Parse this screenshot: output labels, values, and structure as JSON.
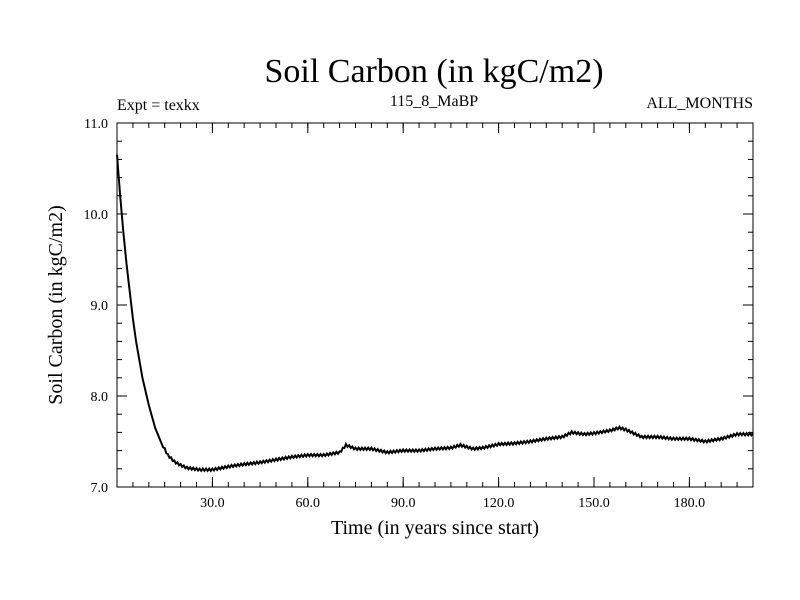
{
  "chart_data": {
    "type": "line",
    "title": "Soil Carbon (in kgC/m2)",
    "subtitle_left": "Expt = texkx",
    "subtitle_center": "115_8_MaBP",
    "subtitle_right": "ALL_MONTHS",
    "xlabel": "Time (in years since start)",
    "ylabel": "Soil Carbon (in kgC/m2)",
    "xlim": [
      0,
      200
    ],
    "ylim": [
      7.0,
      11.0
    ],
    "x_ticks": [
      30,
      60,
      90,
      120,
      150,
      180
    ],
    "x_tick_labels": [
      "30.0",
      "60.0",
      "90.0",
      "120.0",
      "150.0",
      "180.0"
    ],
    "y_ticks": [
      7,
      8,
      9,
      10,
      11
    ],
    "y_tick_labels": [
      "7.0",
      "8.0",
      "9.0",
      "10.0",
      "11.0"
    ],
    "series": [
      {
        "name": "Soil Carbon",
        "x": [
          0,
          1,
          2,
          3,
          4,
          5,
          6,
          8,
          10,
          12,
          14,
          16,
          18,
          20,
          22,
          24,
          26,
          28,
          30,
          33,
          36,
          40,
          45,
          50,
          55,
          60,
          65,
          70,
          72,
          75,
          80,
          85,
          90,
          95,
          100,
          105,
          108,
          112,
          115,
          120,
          125,
          130,
          135,
          140,
          143,
          147,
          150,
          155,
          158,
          160,
          165,
          170,
          175,
          180,
          185,
          190,
          195,
          200
        ],
        "y": [
          10.65,
          10.2,
          9.8,
          9.45,
          9.15,
          8.85,
          8.6,
          8.2,
          7.9,
          7.65,
          7.48,
          7.35,
          7.28,
          7.24,
          7.21,
          7.2,
          7.19,
          7.19,
          7.19,
          7.21,
          7.23,
          7.25,
          7.27,
          7.3,
          7.33,
          7.35,
          7.35,
          7.38,
          7.46,
          7.42,
          7.42,
          7.38,
          7.4,
          7.4,
          7.42,
          7.43,
          7.46,
          7.42,
          7.43,
          7.47,
          7.48,
          7.5,
          7.53,
          7.55,
          7.6,
          7.58,
          7.59,
          7.62,
          7.65,
          7.63,
          7.55,
          7.55,
          7.53,
          7.53,
          7.5,
          7.53,
          7.58,
          7.58
        ]
      }
    ]
  }
}
